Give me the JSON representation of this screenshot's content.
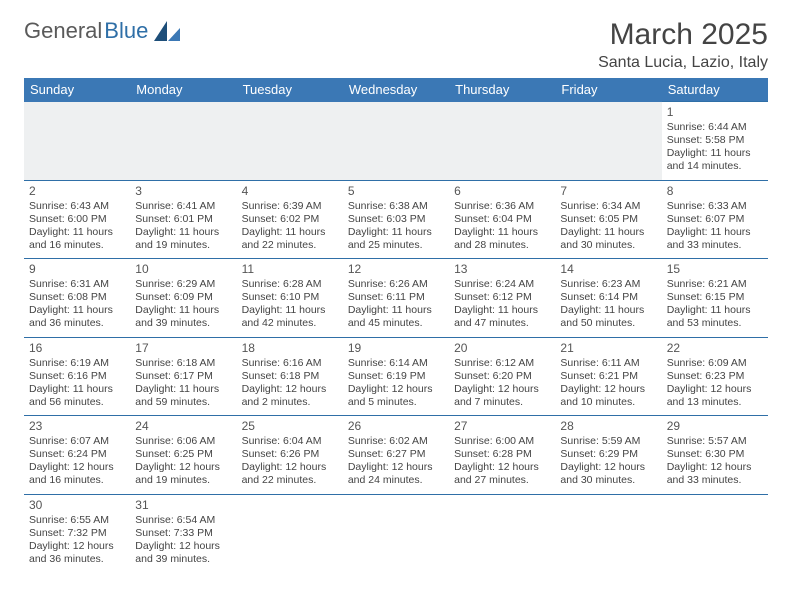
{
  "brand": {
    "part1": "General",
    "part2": "Blue"
  },
  "title": "March 2025",
  "location": "Santa Lucia, Lazio, Italy",
  "colors": {
    "header_bg": "#3b78b5",
    "border": "#2f6fa7",
    "blankrow": "#eef0f1",
    "text": "#444444",
    "brand_gray": "#5a5a5a",
    "brand_blue": "#2f6fa7"
  },
  "weekdays": [
    "Sunday",
    "Monday",
    "Tuesday",
    "Wednesday",
    "Thursday",
    "Friday",
    "Saturday"
  ],
  "calendar": {
    "type": "calendar-table",
    "start_weekday_index": 6,
    "days": [
      {
        "n": 1,
        "sunrise": "6:44 AM",
        "sunset": "5:58 PM",
        "daylight": "11 hours and 14 minutes."
      },
      {
        "n": 2,
        "sunrise": "6:43 AM",
        "sunset": "6:00 PM",
        "daylight": "11 hours and 16 minutes."
      },
      {
        "n": 3,
        "sunrise": "6:41 AM",
        "sunset": "6:01 PM",
        "daylight": "11 hours and 19 minutes."
      },
      {
        "n": 4,
        "sunrise": "6:39 AM",
        "sunset": "6:02 PM",
        "daylight": "11 hours and 22 minutes."
      },
      {
        "n": 5,
        "sunrise": "6:38 AM",
        "sunset": "6:03 PM",
        "daylight": "11 hours and 25 minutes."
      },
      {
        "n": 6,
        "sunrise": "6:36 AM",
        "sunset": "6:04 PM",
        "daylight": "11 hours and 28 minutes."
      },
      {
        "n": 7,
        "sunrise": "6:34 AM",
        "sunset": "6:05 PM",
        "daylight": "11 hours and 30 minutes."
      },
      {
        "n": 8,
        "sunrise": "6:33 AM",
        "sunset": "6:07 PM",
        "daylight": "11 hours and 33 minutes."
      },
      {
        "n": 9,
        "sunrise": "6:31 AM",
        "sunset": "6:08 PM",
        "daylight": "11 hours and 36 minutes."
      },
      {
        "n": 10,
        "sunrise": "6:29 AM",
        "sunset": "6:09 PM",
        "daylight": "11 hours and 39 minutes."
      },
      {
        "n": 11,
        "sunrise": "6:28 AM",
        "sunset": "6:10 PM",
        "daylight": "11 hours and 42 minutes."
      },
      {
        "n": 12,
        "sunrise": "6:26 AM",
        "sunset": "6:11 PM",
        "daylight": "11 hours and 45 minutes."
      },
      {
        "n": 13,
        "sunrise": "6:24 AM",
        "sunset": "6:12 PM",
        "daylight": "11 hours and 47 minutes."
      },
      {
        "n": 14,
        "sunrise": "6:23 AM",
        "sunset": "6:14 PM",
        "daylight": "11 hours and 50 minutes."
      },
      {
        "n": 15,
        "sunrise": "6:21 AM",
        "sunset": "6:15 PM",
        "daylight": "11 hours and 53 minutes."
      },
      {
        "n": 16,
        "sunrise": "6:19 AM",
        "sunset": "6:16 PM",
        "daylight": "11 hours and 56 minutes."
      },
      {
        "n": 17,
        "sunrise": "6:18 AM",
        "sunset": "6:17 PM",
        "daylight": "11 hours and 59 minutes."
      },
      {
        "n": 18,
        "sunrise": "6:16 AM",
        "sunset": "6:18 PM",
        "daylight": "12 hours and 2 minutes."
      },
      {
        "n": 19,
        "sunrise": "6:14 AM",
        "sunset": "6:19 PM",
        "daylight": "12 hours and 5 minutes."
      },
      {
        "n": 20,
        "sunrise": "6:12 AM",
        "sunset": "6:20 PM",
        "daylight": "12 hours and 7 minutes."
      },
      {
        "n": 21,
        "sunrise": "6:11 AM",
        "sunset": "6:21 PM",
        "daylight": "12 hours and 10 minutes."
      },
      {
        "n": 22,
        "sunrise": "6:09 AM",
        "sunset": "6:23 PM",
        "daylight": "12 hours and 13 minutes."
      },
      {
        "n": 23,
        "sunrise": "6:07 AM",
        "sunset": "6:24 PM",
        "daylight": "12 hours and 16 minutes."
      },
      {
        "n": 24,
        "sunrise": "6:06 AM",
        "sunset": "6:25 PM",
        "daylight": "12 hours and 19 minutes."
      },
      {
        "n": 25,
        "sunrise": "6:04 AM",
        "sunset": "6:26 PM",
        "daylight": "12 hours and 22 minutes."
      },
      {
        "n": 26,
        "sunrise": "6:02 AM",
        "sunset": "6:27 PM",
        "daylight": "12 hours and 24 minutes."
      },
      {
        "n": 27,
        "sunrise": "6:00 AM",
        "sunset": "6:28 PM",
        "daylight": "12 hours and 27 minutes."
      },
      {
        "n": 28,
        "sunrise": "5:59 AM",
        "sunset": "6:29 PM",
        "daylight": "12 hours and 30 minutes."
      },
      {
        "n": 29,
        "sunrise": "5:57 AM",
        "sunset": "6:30 PM",
        "daylight": "12 hours and 33 minutes."
      },
      {
        "n": 30,
        "sunrise": "6:55 AM",
        "sunset": "7:32 PM",
        "daylight": "12 hours and 36 minutes."
      },
      {
        "n": 31,
        "sunrise": "6:54 AM",
        "sunset": "7:33 PM",
        "daylight": "12 hours and 39 minutes."
      }
    ]
  },
  "labels": {
    "sunrise_prefix": "Sunrise: ",
    "sunset_prefix": "Sunset: ",
    "daylight_prefix": "Daylight: "
  }
}
